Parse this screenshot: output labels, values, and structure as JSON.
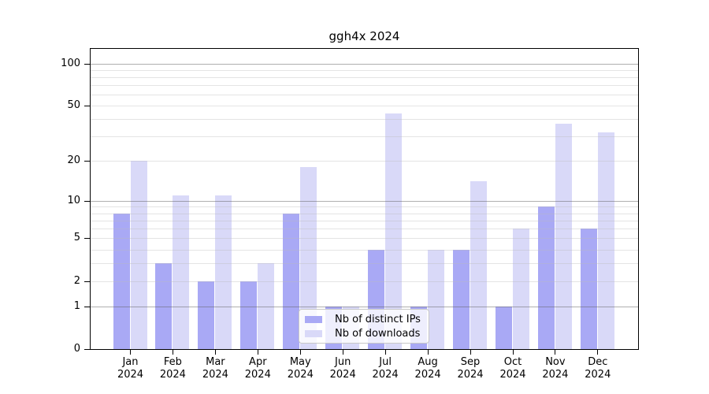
{
  "chart_data": {
    "type": "bar",
    "title": "ggh4x 2024",
    "categories": [
      "Jan",
      "Feb",
      "Mar",
      "Apr",
      "May",
      "Jun",
      "Jul",
      "Aug",
      "Sep",
      "Oct",
      "Nov",
      "Dec"
    ],
    "x_year": "2024",
    "series": [
      {
        "name": "Nb of distinct IPs",
        "color": "#a9a9f5",
        "values": [
          8,
          3,
          2,
          2,
          8,
          1,
          4,
          1,
          4,
          1,
          9,
          6
        ]
      },
      {
        "name": "Nb of downloads",
        "color": "#d9d9f8",
        "values": [
          20,
          11,
          11,
          3,
          18,
          1,
          44,
          4,
          14,
          6,
          37,
          32
        ]
      }
    ],
    "xlabel": "",
    "ylabel": "",
    "yscale": "log1p",
    "ylim": [
      0,
      127
    ],
    "yticks": [
      0,
      1,
      2,
      5,
      10,
      20,
      50,
      100
    ],
    "minor_gridlines": [
      2,
      3,
      4,
      5,
      6,
      7,
      8,
      9,
      20,
      30,
      40,
      50,
      60,
      70,
      80,
      90
    ],
    "major_gridlines": [
      1,
      10,
      100
    ],
    "grid": true,
    "legend_position": "lower-center"
  },
  "colors": {
    "background": "#ffffff",
    "axis": "#000000",
    "minor_grid": "#ebebeb",
    "major_grid": "#b0b0b0"
  }
}
